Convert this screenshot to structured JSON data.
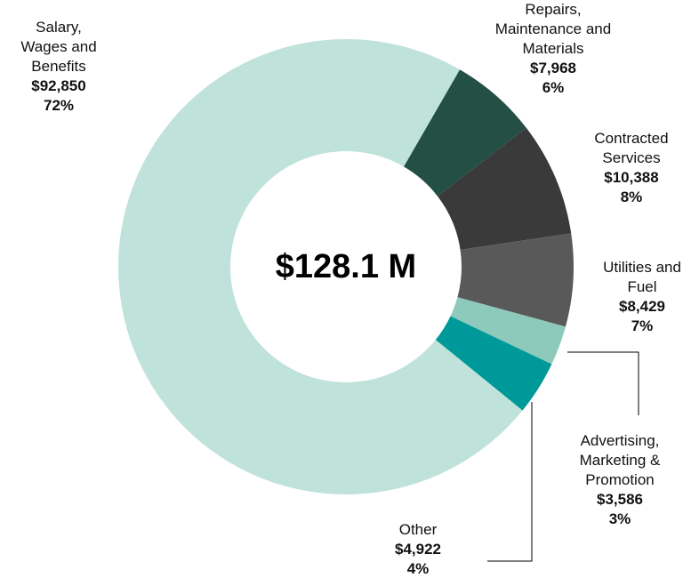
{
  "chart_data": {
    "type": "donut",
    "center_label": "$128.1 M",
    "categories": [
      "Repairs, Maintenance and Materials",
      "Contracted Services",
      "Utilities and Fuel",
      "Advertising, Marketing & Promotion",
      "Other",
      "Salary, Wages and Benefits"
    ],
    "values": [
      7968,
      10388,
      8429,
      3586,
      4922,
      92850
    ],
    "value_labels": [
      "$7,968",
      "$10,388",
      "$8,429",
      "$3,586",
      "$4,922",
      "$92,850"
    ],
    "percent_labels": [
      "6%",
      "8%",
      "7%",
      "3%",
      "4%",
      "72%"
    ],
    "colors": [
      "#234f45",
      "#3a3a3a",
      "#595959",
      "#8ecabc",
      "#009999",
      "#bfe2da"
    ]
  }
}
